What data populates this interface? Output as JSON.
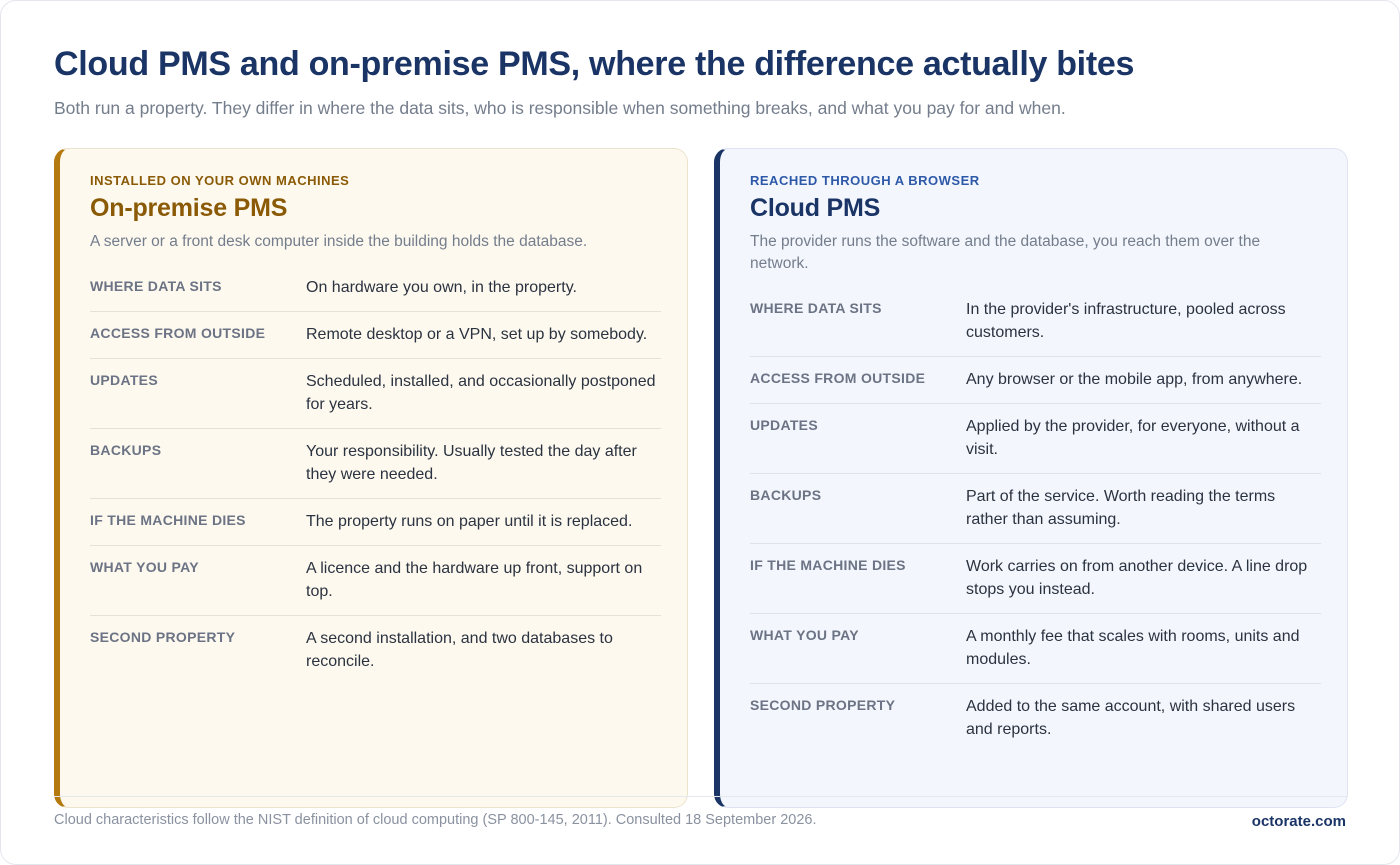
{
  "header": {
    "title": "Cloud PMS and on-premise PMS, where the difference actually bites",
    "subtitle": "Both run a property. They differ in where the data sits, who is responsible when something breaks, and what you pay for and when."
  },
  "on_premise": {
    "eyebrow": "INSTALLED ON YOUR OWN MACHINES",
    "title": "On-premise PMS",
    "description": "A server or a front desk computer inside the building holds the database.",
    "accent_color": "#b57a0f",
    "rows": [
      {
        "label": "WHERE DATA SITS",
        "value": "On hardware you own, in the property."
      },
      {
        "label": "ACCESS FROM OUTSIDE",
        "value": "Remote desktop or a VPN, set up by somebody."
      },
      {
        "label": "UPDATES",
        "value": "Scheduled, installed, and occasionally postponed for years."
      },
      {
        "label": "BACKUPS",
        "value": "Your responsibility. Usually tested the day after they were needed."
      },
      {
        "label": "IF THE MACHINE DIES",
        "value": "The property runs on paper until it is replaced."
      },
      {
        "label": "WHAT YOU PAY",
        "value": "A licence and the hardware up front, support on top."
      },
      {
        "label": "SECOND PROPERTY",
        "value": "A second installation, and two databases to reconcile."
      }
    ]
  },
  "cloud": {
    "eyebrow": "REACHED THROUGH A BROWSER",
    "title": "Cloud PMS",
    "description": "The provider runs the software and the database, you reach them over the network.",
    "accent_color": "#1a3466",
    "rows": [
      {
        "label": "WHERE DATA SITS",
        "value": "In the provider's infrastructure, pooled across customers."
      },
      {
        "label": "ACCESS FROM OUTSIDE",
        "value": "Any browser or the mobile app, from anywhere."
      },
      {
        "label": "UPDATES",
        "value": "Applied by the provider, for everyone, without a visit."
      },
      {
        "label": "BACKUPS",
        "value": "Part of the service. Worth reading the terms rather than assuming."
      },
      {
        "label": "IF THE MACHINE DIES",
        "value": "Work carries on from another device. A line drop stops you instead."
      },
      {
        "label": "WHAT YOU PAY",
        "value": "A monthly fee that scales with rooms, units and modules."
      },
      {
        "label": "SECOND PROPERTY",
        "value": "Added to the same account, with shared users and reports."
      }
    ]
  },
  "footer": {
    "note": "Cloud characteristics follow the NIST definition of cloud computing (SP 800-145, 2011). Consulted 18 September 2026.",
    "brand": "octorate.com"
  }
}
